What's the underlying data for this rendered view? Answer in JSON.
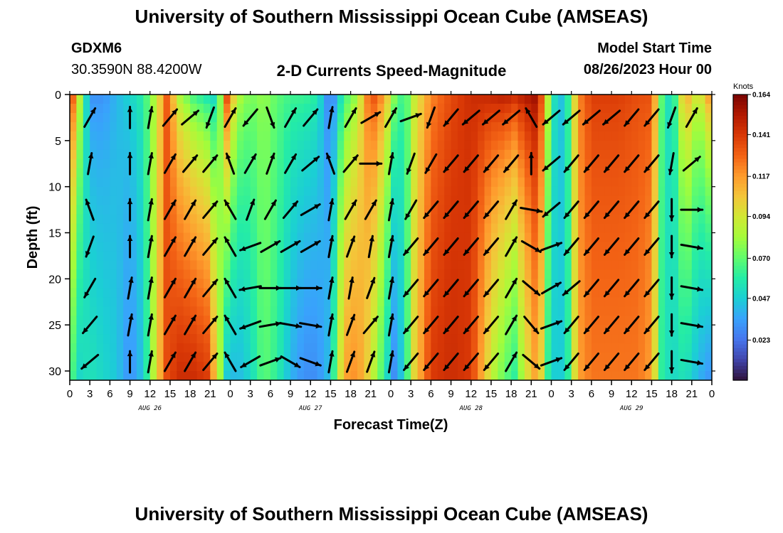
{
  "header": {
    "title_top": "University of Southern Mississippi Ocean Cube (AMSEAS)",
    "station_id": "GDXM6",
    "station_coords": "30.3590N  88.4200W",
    "chart_title": "2-D Currents Speed-Magnitude",
    "model_label": "Model Start Time",
    "model_time": "08/26/2023 Hour 00",
    "title_bottom": "University of Southern Mississippi Ocean Cube (AMSEAS)"
  },
  "chart_data": {
    "type": "heatmap",
    "title": "2-D Currents Speed-Magnitude",
    "xlabel": "Forecast Time(Z)",
    "ylabel": "Depth (ft)",
    "x_range_hours": [
      0,
      96
    ],
    "y_range_ft": [
      0,
      31
    ],
    "x_ticks": [
      {
        "h": 0,
        "label": "0"
      },
      {
        "h": 3,
        "label": "3"
      },
      {
        "h": 6,
        "label": "6"
      },
      {
        "h": 9,
        "label": "9"
      },
      {
        "h": 12,
        "label": "12"
      },
      {
        "h": 15,
        "label": "15"
      },
      {
        "h": 18,
        "label": "18"
      },
      {
        "h": 21,
        "label": "21"
      },
      {
        "h": 24,
        "label": "0"
      },
      {
        "h": 27,
        "label": "3"
      },
      {
        "h": 30,
        "label": "6"
      },
      {
        "h": 33,
        "label": "9"
      },
      {
        "h": 36,
        "label": "12"
      },
      {
        "h": 39,
        "label": "15"
      },
      {
        "h": 42,
        "label": "18"
      },
      {
        "h": 45,
        "label": "21"
      },
      {
        "h": 48,
        "label": "0"
      },
      {
        "h": 51,
        "label": "3"
      },
      {
        "h": 54,
        "label": "6"
      },
      {
        "h": 57,
        "label": "9"
      },
      {
        "h": 60,
        "label": "12"
      },
      {
        "h": 63,
        "label": "15"
      },
      {
        "h": 66,
        "label": "18"
      },
      {
        "h": 69,
        "label": "21"
      },
      {
        "h": 72,
        "label": "0"
      },
      {
        "h": 75,
        "label": "3"
      },
      {
        "h": 78,
        "label": "6"
      },
      {
        "h": 81,
        "label": "9"
      },
      {
        "h": 84,
        "label": "12"
      },
      {
        "h": 87,
        "label": "15"
      },
      {
        "h": 90,
        "label": "18"
      },
      {
        "h": 93,
        "label": "21"
      },
      {
        "h": 96,
        "label": "0"
      }
    ],
    "date_labels": [
      {
        "h": 12,
        "label": "AUG 26"
      },
      {
        "h": 36,
        "label": "AUG 27"
      },
      {
        "h": 60,
        "label": "AUG 28"
      },
      {
        "h": 84,
        "label": "AUG 29"
      }
    ],
    "y_ticks": [
      {
        "v": 0,
        "label": "0"
      },
      {
        "v": 5,
        "label": "5"
      },
      {
        "v": 10,
        "label": "10"
      },
      {
        "v": 15,
        "label": "15"
      },
      {
        "v": 20,
        "label": "20"
      },
      {
        "v": 25,
        "label": "25"
      },
      {
        "v": 30,
        "label": "30"
      }
    ],
    "colorbar": {
      "unit": "Knots",
      "range": [
        0.0,
        0.164
      ],
      "ticks": [
        {
          "v": 0.164,
          "label": "0.164"
        },
        {
          "v": 0.141,
          "label": "0.141"
        },
        {
          "v": 0.117,
          "label": "0.117"
        },
        {
          "v": 0.094,
          "label": "0.094"
        },
        {
          "v": 0.07,
          "label": "0.070"
        },
        {
          "v": 0.047,
          "label": "0.047"
        },
        {
          "v": 0.023,
          "label": "0.023"
        }
      ],
      "colors": [
        "#30123b",
        "#4145ab",
        "#4675ed",
        "#39a2fc",
        "#1bcfd4",
        "#24eca6",
        "#61fc6c",
        "#a4fc3b",
        "#d1e834",
        "#f3c63a",
        "#fe9b2d",
        "#f36315",
        "#d93806",
        "#b11901",
        "#7a0402"
      ]
    },
    "speed_columns": [
      {
        "h": 0,
        "top": 0.155,
        "bottom": 0.07
      },
      {
        "h": 1.5,
        "top": 0.09,
        "bottom": 0.05
      },
      {
        "h": 3,
        "top": 0.03,
        "bottom": 0.055
      },
      {
        "h": 5,
        "top": 0.03,
        "bottom": 0.05
      },
      {
        "h": 7,
        "top": 0.04,
        "bottom": 0.045
      },
      {
        "h": 9,
        "top": 0.05,
        "bottom": 0.03
      },
      {
        "h": 11,
        "top": 0.06,
        "bottom": 0.045
      },
      {
        "h": 13,
        "top": 0.09,
        "bottom": 0.1
      },
      {
        "h": 14.5,
        "top": 0.13,
        "bottom": 0.135
      },
      {
        "h": 16.5,
        "top": 0.08,
        "bottom": 0.145
      },
      {
        "h": 18.5,
        "top": 0.06,
        "bottom": 0.145
      },
      {
        "h": 20.5,
        "top": 0.05,
        "bottom": 0.14
      },
      {
        "h": 22,
        "top": 0.045,
        "bottom": 0.1
      },
      {
        "h": 23.5,
        "top": 0.14,
        "bottom": 0.045
      },
      {
        "h": 25,
        "top": 0.09,
        "bottom": 0.04
      },
      {
        "h": 27,
        "top": 0.075,
        "bottom": 0.05
      },
      {
        "h": 29,
        "top": 0.08,
        "bottom": 0.07
      },
      {
        "h": 31,
        "top": 0.07,
        "bottom": 0.06
      },
      {
        "h": 33,
        "top": 0.065,
        "bottom": 0.04
      },
      {
        "h": 35,
        "top": 0.065,
        "bottom": 0.03
      },
      {
        "h": 37,
        "top": 0.06,
        "bottom": 0.03
      },
      {
        "h": 39,
        "top": 0.02,
        "bottom": 0.045
      },
      {
        "h": 41,
        "top": 0.06,
        "bottom": 0.115
      },
      {
        "h": 43,
        "top": 0.08,
        "bottom": 0.12
      },
      {
        "h": 45,
        "top": 0.14,
        "bottom": 0.095
      },
      {
        "h": 47,
        "top": 0.12,
        "bottom": 0.06
      },
      {
        "h": 48.5,
        "top": 0.08,
        "bottom": 0.03
      },
      {
        "h": 50,
        "top": 0.06,
        "bottom": 0.05
      },
      {
        "h": 51.5,
        "top": 0.09,
        "bottom": 0.1
      },
      {
        "h": 54,
        "top": 0.12,
        "bottom": 0.14
      },
      {
        "h": 57,
        "top": 0.135,
        "bottom": 0.145
      },
      {
        "h": 60,
        "top": 0.145,
        "bottom": 0.14
      },
      {
        "h": 63,
        "top": 0.15,
        "bottom": 0.09
      },
      {
        "h": 65,
        "top": 0.155,
        "bottom": 0.07
      },
      {
        "h": 66.5,
        "top": 0.15,
        "bottom": 0.06
      },
      {
        "h": 68,
        "top": 0.155,
        "bottom": 0.09
      },
      {
        "h": 70,
        "top": 0.16,
        "bottom": 0.12
      },
      {
        "h": 71.5,
        "top": 0.09,
        "bottom": 0.06
      },
      {
        "h": 73,
        "top": 0.035,
        "bottom": 0.04
      },
      {
        "h": 74.5,
        "top": 0.06,
        "bottom": 0.06
      },
      {
        "h": 76,
        "top": 0.12,
        "bottom": 0.115
      },
      {
        "h": 78,
        "top": 0.14,
        "bottom": 0.125
      },
      {
        "h": 82,
        "top": 0.14,
        "bottom": 0.125
      },
      {
        "h": 85,
        "top": 0.135,
        "bottom": 0.125
      },
      {
        "h": 87,
        "top": 0.135,
        "bottom": 0.115
      },
      {
        "h": 88.5,
        "top": 0.07,
        "bottom": 0.06
      },
      {
        "h": 90,
        "top": 0.045,
        "bottom": 0.05
      },
      {
        "h": 92,
        "top": 0.12,
        "bottom": 0.055
      },
      {
        "h": 94,
        "top": 0.09,
        "bottom": 0.04
      },
      {
        "h": 96,
        "top": 0.13,
        "bottom": 0.03
      }
    ],
    "vector_depths_ft": [
      2.5,
      7.5,
      12.5,
      16.5,
      21.0,
      25.0,
      29.0
    ],
    "vectors": [
      {
        "h": 3,
        "dirs": [
          30,
          10,
          340,
          200,
          210,
          220,
          230
        ]
      },
      {
        "h": 9,
        "dirs": [
          0,
          0,
          0,
          0,
          10,
          10,
          0
        ]
      },
      {
        "h": 12,
        "dirs": [
          10,
          10,
          10,
          10,
          10,
          10,
          10
        ]
      },
      {
        "h": 15,
        "dirs": [
          40,
          30,
          30,
          30,
          30,
          30,
          30
        ]
      },
      {
        "h": 18,
        "dirs": [
          50,
          40,
          30,
          30,
          30,
          30,
          30
        ]
      },
      {
        "h": 21,
        "dirs": [
          200,
          40,
          40,
          40,
          40,
          40,
          40
        ]
      },
      {
        "h": 24,
        "dirs": [
          30,
          340,
          330,
          330,
          330,
          330,
          330
        ]
      },
      {
        "h": 27,
        "dirs": [
          220,
          30,
          20,
          250,
          260,
          250,
          240
        ]
      },
      {
        "h": 30,
        "dirs": [
          160,
          20,
          30,
          60,
          90,
          80,
          70
        ]
      },
      {
        "h": 33,
        "dirs": [
          30,
          30,
          40,
          60,
          90,
          100,
          120
        ]
      },
      {
        "h": 36,
        "dirs": [
          40,
          50,
          60,
          60,
          90,
          100,
          110
        ]
      },
      {
        "h": 39,
        "dirs": [
          10,
          340,
          10,
          10,
          10,
          10,
          10
        ]
      },
      {
        "h": 42,
        "dirs": [
          30,
          40,
          30,
          20,
          10,
          20,
          20
        ]
      },
      {
        "h": 45,
        "dirs": [
          60,
          90,
          30,
          10,
          20,
          40,
          20
        ]
      },
      {
        "h": 48,
        "dirs": [
          30,
          10,
          10,
          10,
          10,
          10,
          10
        ]
      },
      {
        "h": 51,
        "dirs": [
          70,
          200,
          210,
          220,
          220,
          220,
          220
        ]
      },
      {
        "h": 54,
        "dirs": [
          200,
          210,
          220,
          220,
          220,
          220,
          220
        ]
      },
      {
        "h": 57,
        "dirs": [
          220,
          220,
          220,
          220,
          220,
          220,
          220
        ]
      },
      {
        "h": 60,
        "dirs": [
          230,
          220,
          220,
          220,
          220,
          220,
          220
        ]
      },
      {
        "h": 63,
        "dirs": [
          230,
          220,
          220,
          220,
          220,
          220,
          220
        ]
      },
      {
        "h": 66,
        "dirs": [
          230,
          220,
          30,
          30,
          30,
          30,
          30
        ]
      },
      {
        "h": 69,
        "dirs": [
          330,
          0,
          100,
          120,
          130,
          140,
          130
        ]
      },
      {
        "h": 72,
        "dirs": [
          230,
          230,
          230,
          70,
          60,
          70,
          70
        ]
      },
      {
        "h": 75,
        "dirs": [
          230,
          220,
          220,
          220,
          230,
          220,
          220
        ]
      },
      {
        "h": 78,
        "dirs": [
          230,
          220,
          220,
          220,
          220,
          220,
          220
        ]
      },
      {
        "h": 81,
        "dirs": [
          230,
          220,
          220,
          220,
          220,
          220,
          220
        ]
      },
      {
        "h": 84,
        "dirs": [
          220,
          220,
          220,
          220,
          220,
          220,
          220
        ]
      },
      {
        "h": 87,
        "dirs": [
          220,
          220,
          220,
          220,
          220,
          220,
          220
        ]
      },
      {
        "h": 90,
        "dirs": [
          200,
          190,
          180,
          180,
          180,
          180,
          180
        ]
      },
      {
        "h": 93,
        "dirs": [
          30,
          50,
          90,
          100,
          100,
          100,
          100
        ]
      }
    ]
  }
}
